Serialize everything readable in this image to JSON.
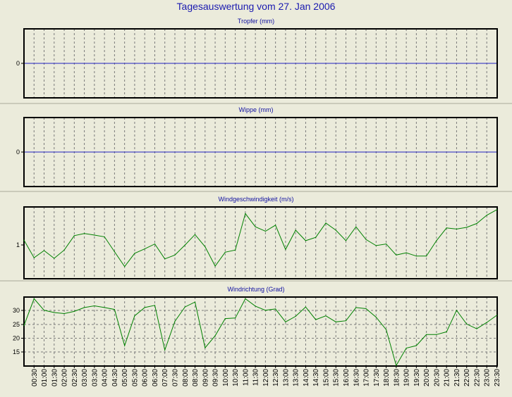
{
  "title": "Tagesauswertung vom 27. Jan 2006",
  "colors": {
    "background": "#ebebdb",
    "axis": "#000000",
    "grid": "#7a7a7a",
    "zero_line": "#2020c0",
    "series": "#008000",
    "title_text": "#1a1ab0"
  },
  "chart_data": [
    {
      "type": "line",
      "title": "Tropfer (mm)",
      "yticks": [
        "0"
      ],
      "ylim": [
        -1,
        1
      ],
      "series": [
        {
          "values": [
            0,
            0
          ]
        }
      ],
      "grid": "vertical dashed every 30 min"
    },
    {
      "type": "line",
      "title": "Wippe (mm)",
      "yticks": [
        "0"
      ],
      "ylim": [
        -1,
        1
      ],
      "series": [
        {
          "values": [
            0,
            0
          ]
        }
      ],
      "grid": "vertical dashed every 30 min"
    },
    {
      "type": "line",
      "title": "Windgeschwindigkeit (m/s)",
      "yticks": [
        "1"
      ],
      "ylim": [
        0.3,
        1.6
      ],
      "series": [
        {
          "values": [
            1.0,
            0.68,
            0.81,
            0.67,
            0.82,
            1.08,
            1.12,
            1.09,
            1.06,
            0.79,
            0.52,
            0.76,
            0.84,
            0.93,
            0.66,
            0.73,
            0.91,
            1.1,
            0.88,
            0.53,
            0.78,
            0.82,
            1.48,
            1.24,
            1.16,
            1.27,
            0.83,
            1.18,
            0.99,
            1.05,
            1.31,
            1.18,
            0.99,
            1.24,
            1.01,
            0.9,
            0.93,
            0.73,
            0.77,
            0.71,
            0.71,
            0.99,
            1.22,
            1.2,
            1.23,
            1.3,
            1.45,
            1.55
          ]
        }
      ],
      "grid": "vertical dashed every 30 min"
    },
    {
      "type": "line",
      "title": "Windrichtung (Grad)",
      "yticks": [
        "30",
        "25",
        "20",
        "15"
      ],
      "ylim": [
        9.8,
        34.8
      ],
      "series": [
        {
          "values": [
            24.5,
            34.2,
            30.0,
            29.2,
            28.8,
            29.6,
            31.0,
            31.6,
            31.0,
            30.3,
            17.2,
            28.0,
            31.0,
            31.8,
            15.6,
            26.0,
            31.2,
            33.0,
            16.4,
            20.8,
            27.0,
            27.2,
            34.2,
            31.5,
            30.0,
            30.5,
            25.8,
            27.8,
            31.2,
            26.6,
            28.0,
            25.8,
            26.2,
            31.0,
            30.6,
            27.5,
            23.0,
            10.0,
            16.3,
            17.2,
            21.2,
            21.2,
            22.2,
            30.0,
            25.0,
            23.3,
            25.6,
            28.2
          ]
        }
      ],
      "grid": "vertical and horizontal dashed"
    }
  ],
  "x_tick_labels": [
    "00:30",
    "01:00",
    "01:30",
    "02:00",
    "02:30",
    "03:00",
    "03:30",
    "04:00",
    "04:30",
    "05:00",
    "05:30",
    "06:00",
    "06:30",
    "07:00",
    "07:30",
    "08:00",
    "08:30",
    "09:00",
    "09:30",
    "10:00",
    "10:30",
    "11:00",
    "11:30",
    "12:00",
    "12:30",
    "13:00",
    "13:30",
    "14:00",
    "14:30",
    "15:00",
    "15:30",
    "16:00",
    "16:30",
    "17:00",
    "17:30",
    "18:00",
    "18:30",
    "19:00",
    "19:30",
    "20:00",
    "20:30",
    "21:00",
    "21:30",
    "22:00",
    "22:30",
    "23:00",
    "23:30"
  ]
}
